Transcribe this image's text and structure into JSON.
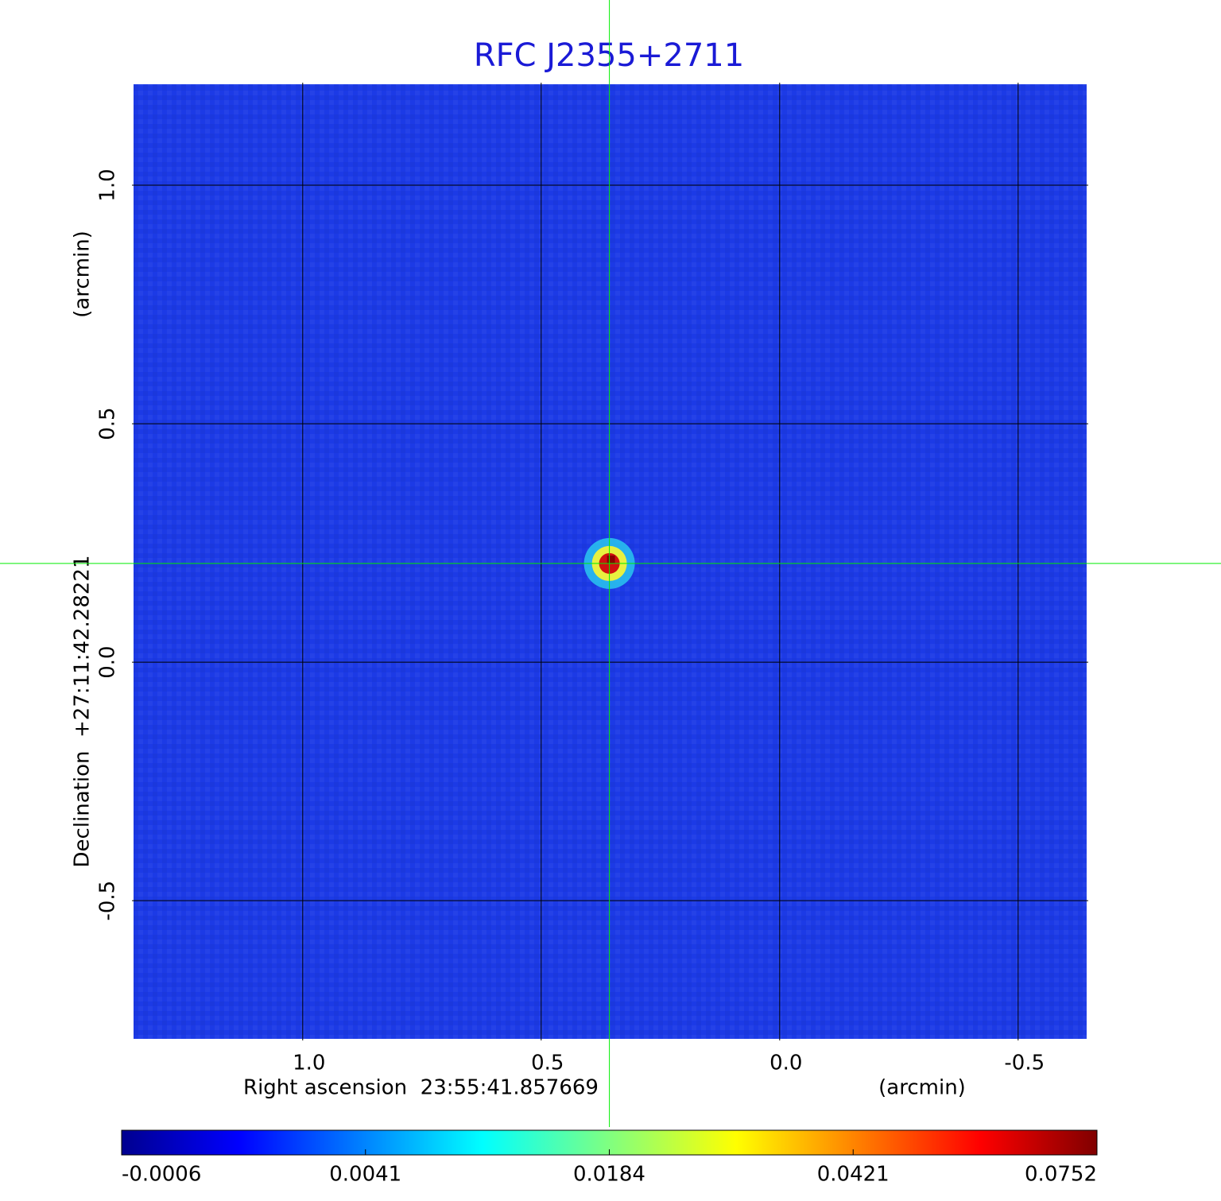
{
  "chart_data": {
    "type": "image",
    "title": "RFC J2355+2711",
    "x_label": "Right ascension  23:55:41.857669",
    "x_unit": "(arcmin)",
    "y_label": "Declination  +27:11:42.28221",
    "y_unit": "(arcmin)",
    "xlim": [
      1.358,
      -0.647
    ],
    "ylim": [
      -0.793,
      1.215
    ],
    "xticks": [
      {
        "value": 1,
        "label": "1.0"
      },
      0.5,
      {
        "value": 0,
        "label": "0.0"
      },
      -0.5
    ],
    "yticks": [
      {
        "value": 1,
        "label": "1.0"
      },
      0.5,
      {
        "value": 0,
        "label": "0.0"
      },
      -0.5
    ],
    "grid": true,
    "colormap": "jet",
    "background_color": "#1c3ae6",
    "crosshair_color": "#00ee00",
    "source": {
      "x": 0.357,
      "y": 0.207,
      "peak": 0.0752
    },
    "colorbar_ticks": [
      -0.0006,
      0.0041,
      0.0184,
      0.0421,
      0.0752
    ]
  }
}
